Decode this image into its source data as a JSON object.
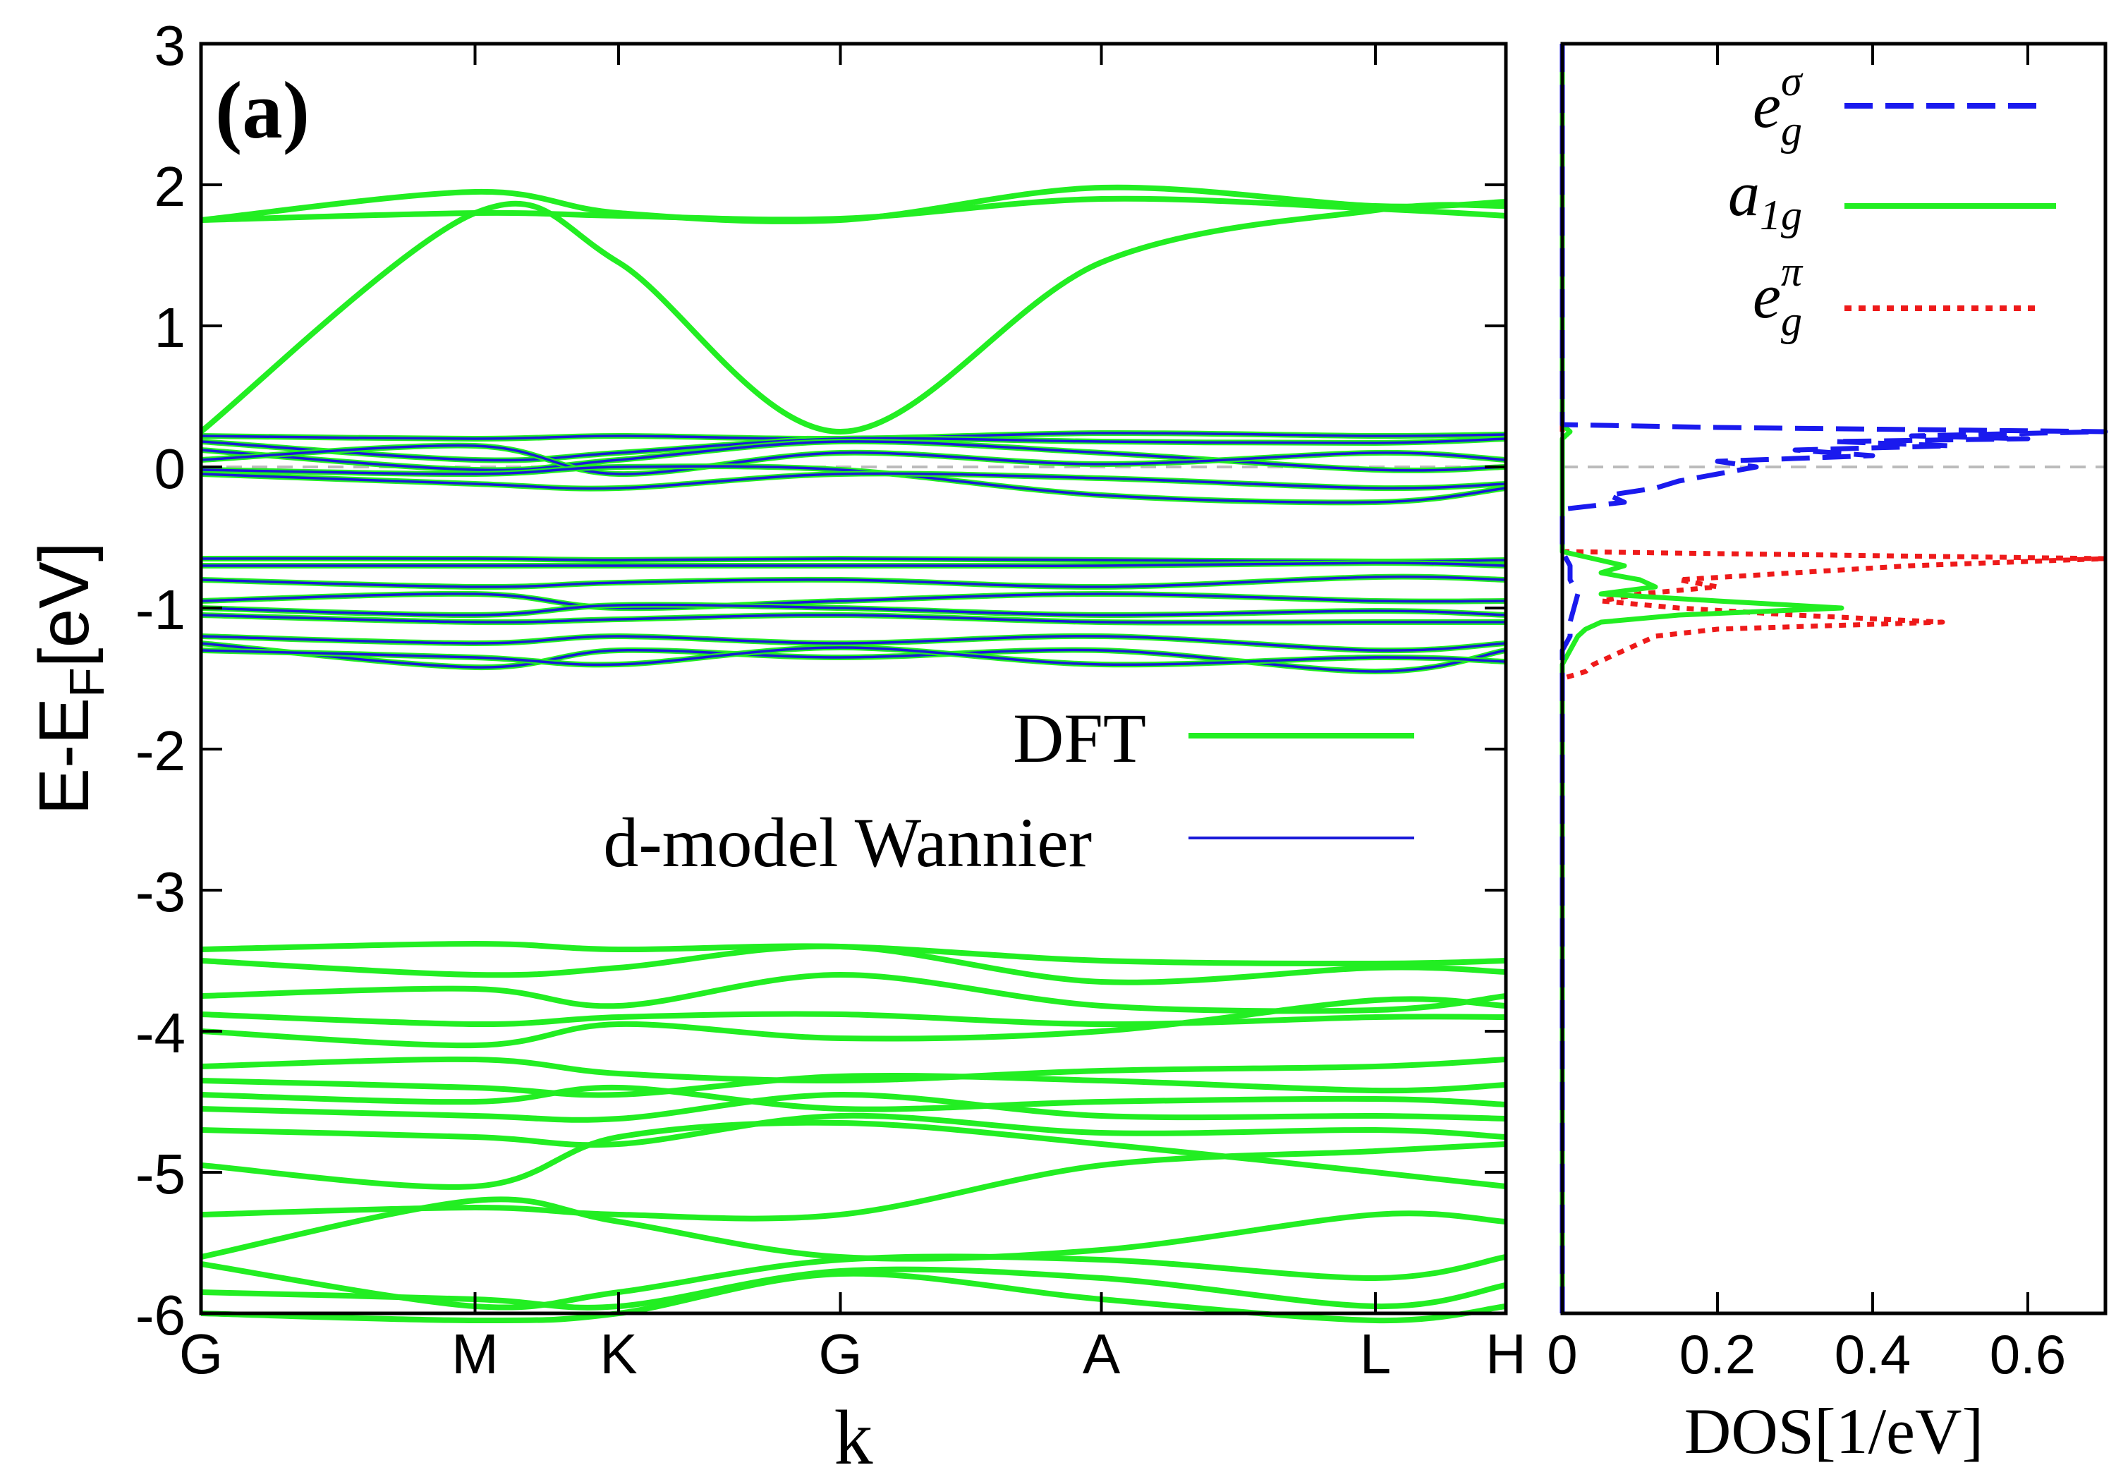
{
  "colors": {
    "dft": "#22ee22",
    "wannier": "#1a1ad8",
    "eg_sigma": "#1a1aee",
    "a1g": "#22ee22",
    "eg_pi": "#ee1a1a",
    "fermi_line": "#bbbbbb",
    "axis": "#000000"
  },
  "chart_data": [
    {
      "type": "line",
      "panel_label": "(a)",
      "title": "",
      "xlabel": "k",
      "ylabel_main": "E-E",
      "ylabel_sub": "F",
      "ylabel_tail": "[eV]",
      "ylim": [
        -6,
        3
      ],
      "yticks": [
        3,
        2,
        1,
        0,
        -1,
        -2,
        -3,
        -4,
        -5,
        -6
      ],
      "ytick_labels": [
        "3",
        "2",
        "1",
        "0",
        "-1",
        "-2",
        "-3",
        "-4",
        "-5",
        "-6"
      ],
      "xlim": [
        0,
        10
      ],
      "kpoints": [
        {
          "label": "G",
          "x": 0
        },
        {
          "label": "M",
          "x": 2.1
        },
        {
          "label": "K",
          "x": 3.2
        },
        {
          "label": "G",
          "x": 4.9
        },
        {
          "label": "A",
          "x": 6.9
        },
        {
          "label": "L",
          "x": 9.0
        },
        {
          "label": "H",
          "x": 10.0
        }
      ],
      "fermi_level": 0,
      "legend": [
        {
          "label": "DFT",
          "series": "dft"
        },
        {
          "label": "d-model Wannier",
          "series": "wannier"
        }
      ],
      "x": [
        0,
        2.1,
        3.2,
        4.9,
        6.9,
        9.0,
        10.0
      ],
      "dft_series": [
        {
          "name": "upper-flat",
          "values": [
            1.75,
            1.95,
            1.8,
            1.75,
            1.98,
            1.85,
            1.88
          ]
        },
        {
          "name": "upper-flat-2",
          "values": [
            1.75,
            1.8,
            1.78,
            1.76,
            1.9,
            1.83,
            1.78
          ]
        },
        {
          "name": "dispersive",
          "values": [
            0.25,
            1.8,
            1.45,
            0.25,
            1.45,
            1.82,
            1.85
          ]
        },
        {
          "name": "c1",
          "values": [
            -3.42,
            -3.38,
            -3.42,
            -3.4,
            -3.5,
            -3.52,
            -3.5
          ]
        },
        {
          "name": "c2",
          "values": [
            -3.5,
            -3.6,
            -3.55,
            -3.4,
            -3.65,
            -3.55,
            -3.58
          ]
        },
        {
          "name": "c3",
          "values": [
            -3.75,
            -3.7,
            -3.82,
            -3.6,
            -3.82,
            -3.85,
            -3.75
          ]
        },
        {
          "name": "c4",
          "values": [
            -3.88,
            -3.95,
            -3.9,
            -3.88,
            -3.95,
            -3.9,
            -3.9
          ]
        },
        {
          "name": "c5",
          "values": [
            -4.0,
            -4.1,
            -3.95,
            -4.05,
            -4.0,
            -3.78,
            -3.82
          ]
        },
        {
          "name": "c6",
          "values": [
            -4.25,
            -4.2,
            -4.3,
            -4.35,
            -4.28,
            -4.25,
            -4.2
          ]
        },
        {
          "name": "c7",
          "values": [
            -4.35,
            -4.4,
            -4.45,
            -4.32,
            -4.35,
            -4.42,
            -4.38
          ]
        },
        {
          "name": "c8",
          "values": [
            -4.45,
            -4.5,
            -4.4,
            -4.55,
            -4.5,
            -4.48,
            -4.52
          ]
        },
        {
          "name": "c9",
          "values": [
            -4.55,
            -4.6,
            -4.62,
            -4.45,
            -4.6,
            -4.6,
            -4.62
          ]
        },
        {
          "name": "c10",
          "values": [
            -4.7,
            -4.75,
            -4.8,
            -4.6,
            -4.72,
            -4.7,
            -4.75
          ]
        },
        {
          "name": "c11",
          "values": [
            -4.95,
            -5.1,
            -4.75,
            -4.65,
            -4.8,
            -5.0,
            -5.1
          ]
        },
        {
          "name": "c12",
          "values": [
            -5.3,
            -5.25,
            -5.3,
            -5.3,
            -4.95,
            -4.85,
            -4.8
          ]
        },
        {
          "name": "c13",
          "values": [
            -5.6,
            -5.2,
            -5.35,
            -5.6,
            -5.55,
            -5.3,
            -5.35
          ]
        },
        {
          "name": "c14",
          "values": [
            -5.65,
            -5.95,
            -5.85,
            -5.62,
            -5.62,
            -5.75,
            -5.6
          ]
        },
        {
          "name": "c15",
          "values": [
            -5.85,
            -5.9,
            -5.95,
            -5.7,
            -5.75,
            -5.95,
            -5.8
          ]
        },
        {
          "name": "c16",
          "values": [
            -6.0,
            -6.05,
            -6.0,
            -5.72,
            -5.9,
            -6.05,
            -5.95
          ]
        }
      ],
      "wannier_series": [
        {
          "name": "w1",
          "values": [
            0.22,
            0.2,
            0.22,
            0.2,
            0.24,
            0.22,
            0.23
          ]
        },
        {
          "name": "w2",
          "values": [
            0.18,
            0.05,
            0.1,
            0.2,
            0.18,
            0.17,
            0.2
          ]
        },
        {
          "name": "w3",
          "values": [
            0.12,
            -0.02,
            0.05,
            0.18,
            0.1,
            -0.02,
            0.0
          ]
        },
        {
          "name": "w4",
          "values": [
            0.05,
            0.15,
            -0.05,
            0.1,
            0.02,
            0.1,
            0.05
          ]
        },
        {
          "name": "w5",
          "values": [
            -0.02,
            -0.05,
            0.0,
            -0.02,
            -0.2,
            -0.25,
            -0.15
          ]
        },
        {
          "name": "w6",
          "values": [
            -0.05,
            -0.12,
            -0.15,
            -0.05,
            -0.08,
            -0.15,
            -0.12
          ]
        },
        {
          "name": "w7",
          "values": [
            -0.65,
            -0.65,
            -0.66,
            -0.65,
            -0.66,
            -0.67,
            -0.66
          ]
        },
        {
          "name": "w8",
          "values": [
            -0.7,
            -0.7,
            -0.7,
            -0.7,
            -0.7,
            -0.68,
            -0.7
          ]
        },
        {
          "name": "w9",
          "values": [
            -0.8,
            -0.85,
            -0.82,
            -0.8,
            -0.85,
            -0.78,
            -0.8
          ]
        },
        {
          "name": "w10",
          "values": [
            -0.95,
            -0.9,
            -1.0,
            -0.95,
            -0.9,
            -0.95,
            -0.95
          ]
        },
        {
          "name": "w11",
          "values": [
            -1.0,
            -1.05,
            -0.98,
            -1.0,
            -1.05,
            -1.02,
            -1.05
          ]
        },
        {
          "name": "w12",
          "values": [
            -1.05,
            -1.1,
            -1.08,
            -1.05,
            -1.1,
            -1.1,
            -1.1
          ]
        },
        {
          "name": "w13",
          "values": [
            -1.2,
            -1.25,
            -1.2,
            -1.25,
            -1.2,
            -1.3,
            -1.25
          ]
        },
        {
          "name": "w14",
          "values": [
            -1.25,
            -1.42,
            -1.3,
            -1.35,
            -1.3,
            -1.45,
            -1.3
          ]
        },
        {
          "name": "w15",
          "values": [
            -1.3,
            -1.35,
            -1.4,
            -1.28,
            -1.4,
            -1.35,
            -1.38
          ]
        }
      ]
    },
    {
      "type": "line",
      "title": "",
      "xlabel": "DOS[1/eV]",
      "xlim": [
        0,
        0.7
      ],
      "xticks": [
        0,
        0.2,
        0.4,
        0.6
      ],
      "xtick_labels": [
        "0",
        "0.2",
        "0.4",
        "0.6"
      ],
      "ylim": [
        -6,
        3
      ],
      "fermi_level": 0,
      "legend": [
        {
          "label_base": "e",
          "label_sub": "g",
          "label_sup": "σ",
          "series": "eg_sigma",
          "style": "dashed"
        },
        {
          "label_base": "a",
          "label_sub": "1g",
          "label_sup": "",
          "series": "a1g",
          "style": "solid"
        },
        {
          "label_base": "e",
          "label_sub": "g",
          "label_sup": "π",
          "series": "eg_pi",
          "style": "dotted"
        }
      ],
      "series": [
        {
          "name": "eg_sigma",
          "energy": [
            3.0,
            0.3,
            0.28,
            0.25,
            0.22,
            0.2,
            0.18,
            0.15,
            0.12,
            0.08,
            0.04,
            0.0,
            -0.05,
            -0.1,
            -0.15,
            -0.2,
            -0.25,
            -0.3,
            -0.6,
            -0.7,
            -0.8,
            -0.9,
            -1.0,
            -1.1,
            -1.2,
            -1.3,
            -6.0
          ],
          "dos": [
            0.0,
            0.0,
            0.2,
            0.7,
            0.45,
            0.6,
            0.35,
            0.5,
            0.3,
            0.4,
            0.2,
            0.25,
            0.2,
            0.15,
            0.12,
            0.06,
            0.08,
            0.0,
            0.0,
            0.01,
            0.01,
            0.02,
            0.015,
            0.01,
            0.01,
            0.0,
            0.0
          ]
        },
        {
          "name": "a1g",
          "energy": [
            3.0,
            0.3,
            0.25,
            0.2,
            0.0,
            -0.6,
            -0.65,
            -0.7,
            -0.75,
            -0.8,
            -0.85,
            -0.9,
            -0.95,
            -1.0,
            -1.05,
            -1.1,
            -1.15,
            -1.2,
            -1.3,
            -1.4,
            -1.5,
            -6.0
          ],
          "dos": [
            0.0,
            0.0,
            0.01,
            0.0,
            0.0,
            0.0,
            0.04,
            0.08,
            0.05,
            0.1,
            0.12,
            0.05,
            0.2,
            0.36,
            0.15,
            0.05,
            0.03,
            0.02,
            0.01,
            0.0,
            0.0,
            0.0
          ]
        },
        {
          "name": "eg_pi",
          "energy": [
            3.0,
            0.3,
            0.2,
            0.0,
            -0.6,
            -0.65,
            -0.7,
            -0.75,
            -0.8,
            -0.85,
            -0.9,
            -0.95,
            -1.0,
            -1.05,
            -1.1,
            -1.15,
            -1.2,
            -1.25,
            -1.3,
            -1.35,
            -1.4,
            -1.45,
            -1.5,
            -6.0
          ],
          "dos": [
            0.0,
            0.0,
            0.0,
            0.0,
            0.0,
            0.7,
            0.45,
            0.3,
            0.15,
            0.2,
            0.1,
            0.05,
            0.15,
            0.3,
            0.49,
            0.2,
            0.12,
            0.1,
            0.08,
            0.06,
            0.04,
            0.03,
            0.0,
            0.0
          ]
        }
      ]
    }
  ]
}
